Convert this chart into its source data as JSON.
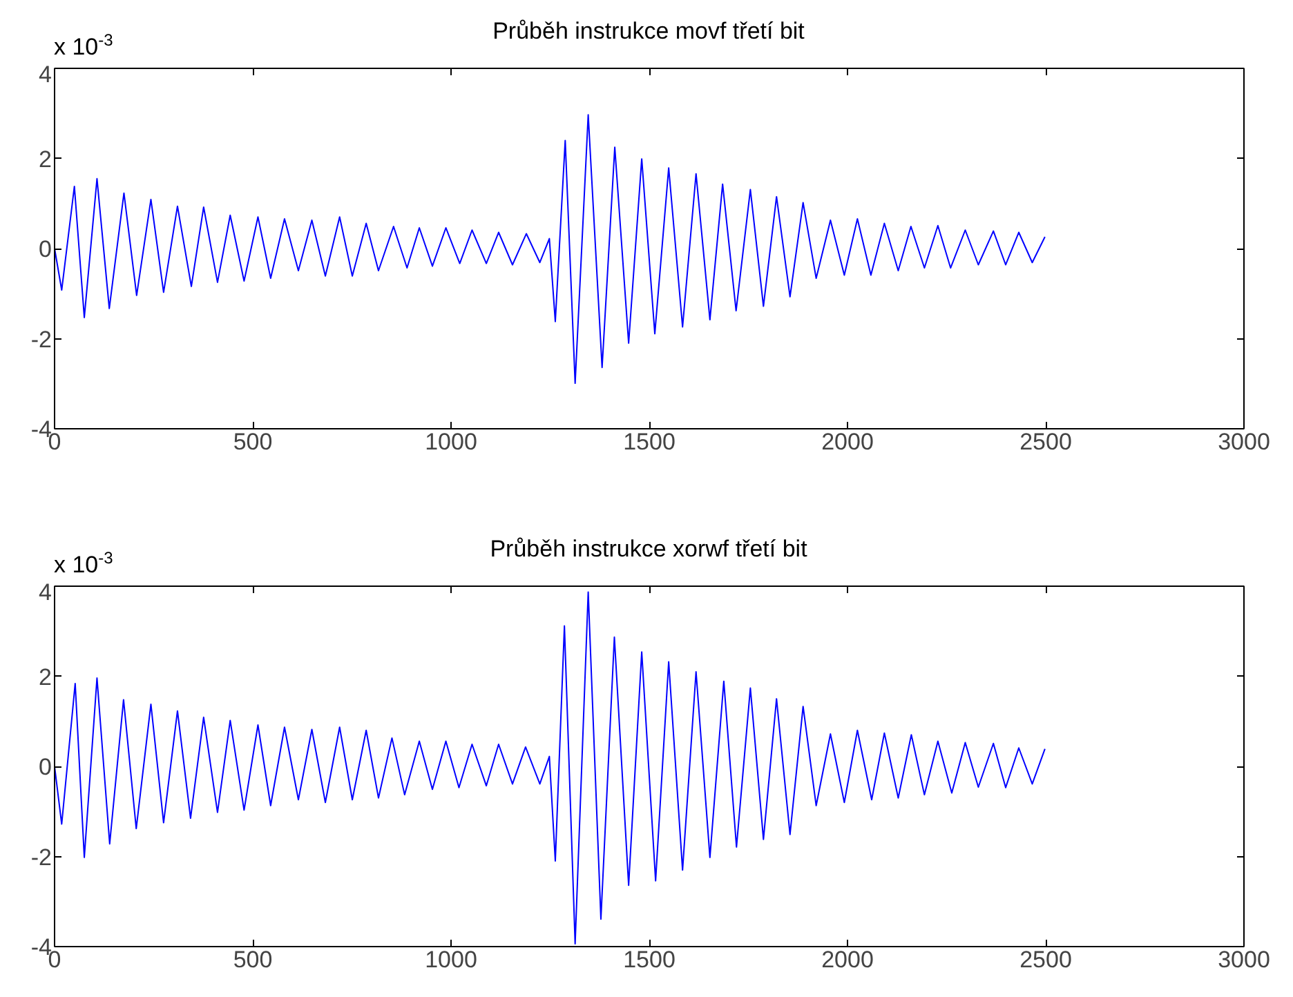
{
  "chart_data": [
    {
      "type": "line",
      "title": "Průběh instrukce movf třetí bit",
      "annotations": [
        "x 10$^{-3}$"
      ],
      "xlim": [
        0,
        3000
      ],
      "xticks": [
        0,
        500,
        1000,
        1500,
        2000,
        2500,
        3000
      ],
      "ylim": [
        -4,
        4
      ],
      "yticks": [
        -4,
        -2,
        0,
        2,
        4
      ],
      "grid": false,
      "marker": "none",
      "line_style": "solid",
      "series": [
        {
          "color": "#0000ff",
          "x": [
            0,
            18,
            50,
            75,
            107,
            138,
            175,
            207,
            243,
            275,
            310,
            345,
            376,
            411,
            443,
            478,
            513,
            545,
            580,
            615,
            649,
            683,
            719,
            751,
            786,
            817,
            855,
            889,
            920,
            953,
            987,
            1022,
            1053,
            1089,
            1120,
            1155,
            1190,
            1224,
            1248,
            1263,
            1288,
            1313,
            1346,
            1381,
            1413,
            1448,
            1481,
            1514,
            1549,
            1584,
            1618,
            1653,
            1685,
            1719,
            1755,
            1788,
            1821,
            1855,
            1888,
            1921,
            1957,
            1992,
            2025,
            2059,
            2093,
            2128,
            2160,
            2194,
            2228,
            2260,
            2297,
            2330,
            2368,
            2399,
            2432,
            2466,
            2498
          ],
          "values": [
            0,
            -0.92,
            1.38,
            -1.53,
            1.55,
            -1.33,
            1.23,
            -1.04,
            1.09,
            -0.97,
            0.94,
            -0.84,
            0.92,
            -0.75,
            0.74,
            -0.72,
            0.7,
            -0.66,
            0.66,
            -0.49,
            0.63,
            -0.61,
            0.7,
            -0.61,
            0.56,
            -0.49,
            0.49,
            -0.43,
            0.46,
            -0.39,
            0.46,
            -0.33,
            0.41,
            -0.33,
            0.36,
            -0.36,
            0.33,
            -0.31,
            0.22,
            -1.62,
            2.4,
            -2.99,
            2.97,
            -2.64,
            2.25,
            -2.1,
            1.99,
            -1.89,
            1.79,
            -1.74,
            1.66,
            -1.58,
            1.43,
            -1.38,
            1.31,
            -1.28,
            1.15,
            -1.07,
            1.02,
            -0.66,
            0.63,
            -0.59,
            0.66,
            -0.59,
            0.56,
            -0.49,
            0.49,
            -0.43,
            0.51,
            -0.43,
            0.41,
            -0.36,
            0.39,
            -0.36,
            0.36,
            -0.31,
            0.26
          ]
        }
      ]
    },
    {
      "type": "line",
      "title": "Průběh instrukce xorwf třetí bit",
      "annotations": [
        "x 10$^{-3}$"
      ],
      "xlim": [
        0,
        3000
      ],
      "xticks": [
        0,
        500,
        1000,
        1500,
        2000,
        2500,
        3000
      ],
      "ylim": [
        -4,
        4
      ],
      "yticks": [
        -4,
        -2,
        0,
        2,
        4
      ],
      "grid": false,
      "marker": "none",
      "line_style": "solid",
      "series": [
        {
          "color": "#0000ff",
          "x": [
            0,
            18,
            52,
            75,
            107,
            139,
            174,
            206,
            243,
            275,
            310,
            343,
            376,
            411,
            443,
            478,
            513,
            545,
            580,
            615,
            649,
            683,
            719,
            751,
            786,
            817,
            851,
            883,
            920,
            953,
            987,
            1020,
            1053,
            1089,
            1120,
            1155,
            1188,
            1224,
            1248,
            1263,
            1286,
            1313,
            1346,
            1378,
            1412,
            1448,
            1481,
            1516,
            1549,
            1584,
            1618,
            1653,
            1688,
            1720,
            1755,
            1788,
            1821,
            1855,
            1888,
            1921,
            1957,
            1992,
            2025,
            2061,
            2093,
            2128,
            2161,
            2194,
            2228,
            2263,
            2297,
            2330,
            2368,
            2399,
            2432,
            2466,
            2498
          ],
          "values": [
            0,
            -1.28,
            1.84,
            -2.02,
            1.96,
            -1.72,
            1.48,
            -1.38,
            1.38,
            -1.25,
            1.23,
            -1.15,
            1.09,
            -1.02,
            1.02,
            -0.97,
            0.92,
            -0.87,
            0.87,
            -0.74,
            0.82,
            -0.8,
            0.87,
            -0.74,
            0.8,
            -0.7,
            0.63,
            -0.63,
            0.56,
            -0.51,
            0.56,
            -0.47,
            0.49,
            -0.43,
            0.49,
            -0.39,
            0.43,
            -0.39,
            0.22,
            -2.1,
            3.12,
            -3.94,
            3.87,
            -3.39,
            2.87,
            -2.64,
            2.54,
            -2.54,
            2.32,
            -2.3,
            2.1,
            -2.02,
            1.89,
            -1.79,
            1.74,
            -1.62,
            1.5,
            -1.51,
            1.33,
            -0.87,
            0.72,
            -0.8,
            0.8,
            -0.74,
            0.74,
            -0.7,
            0.7,
            -0.63,
            0.56,
            -0.59,
            0.53,
            -0.46,
            0.51,
            -0.47,
            0.41,
            -0.39,
            0.39
          ]
        }
      ]
    }
  ]
}
